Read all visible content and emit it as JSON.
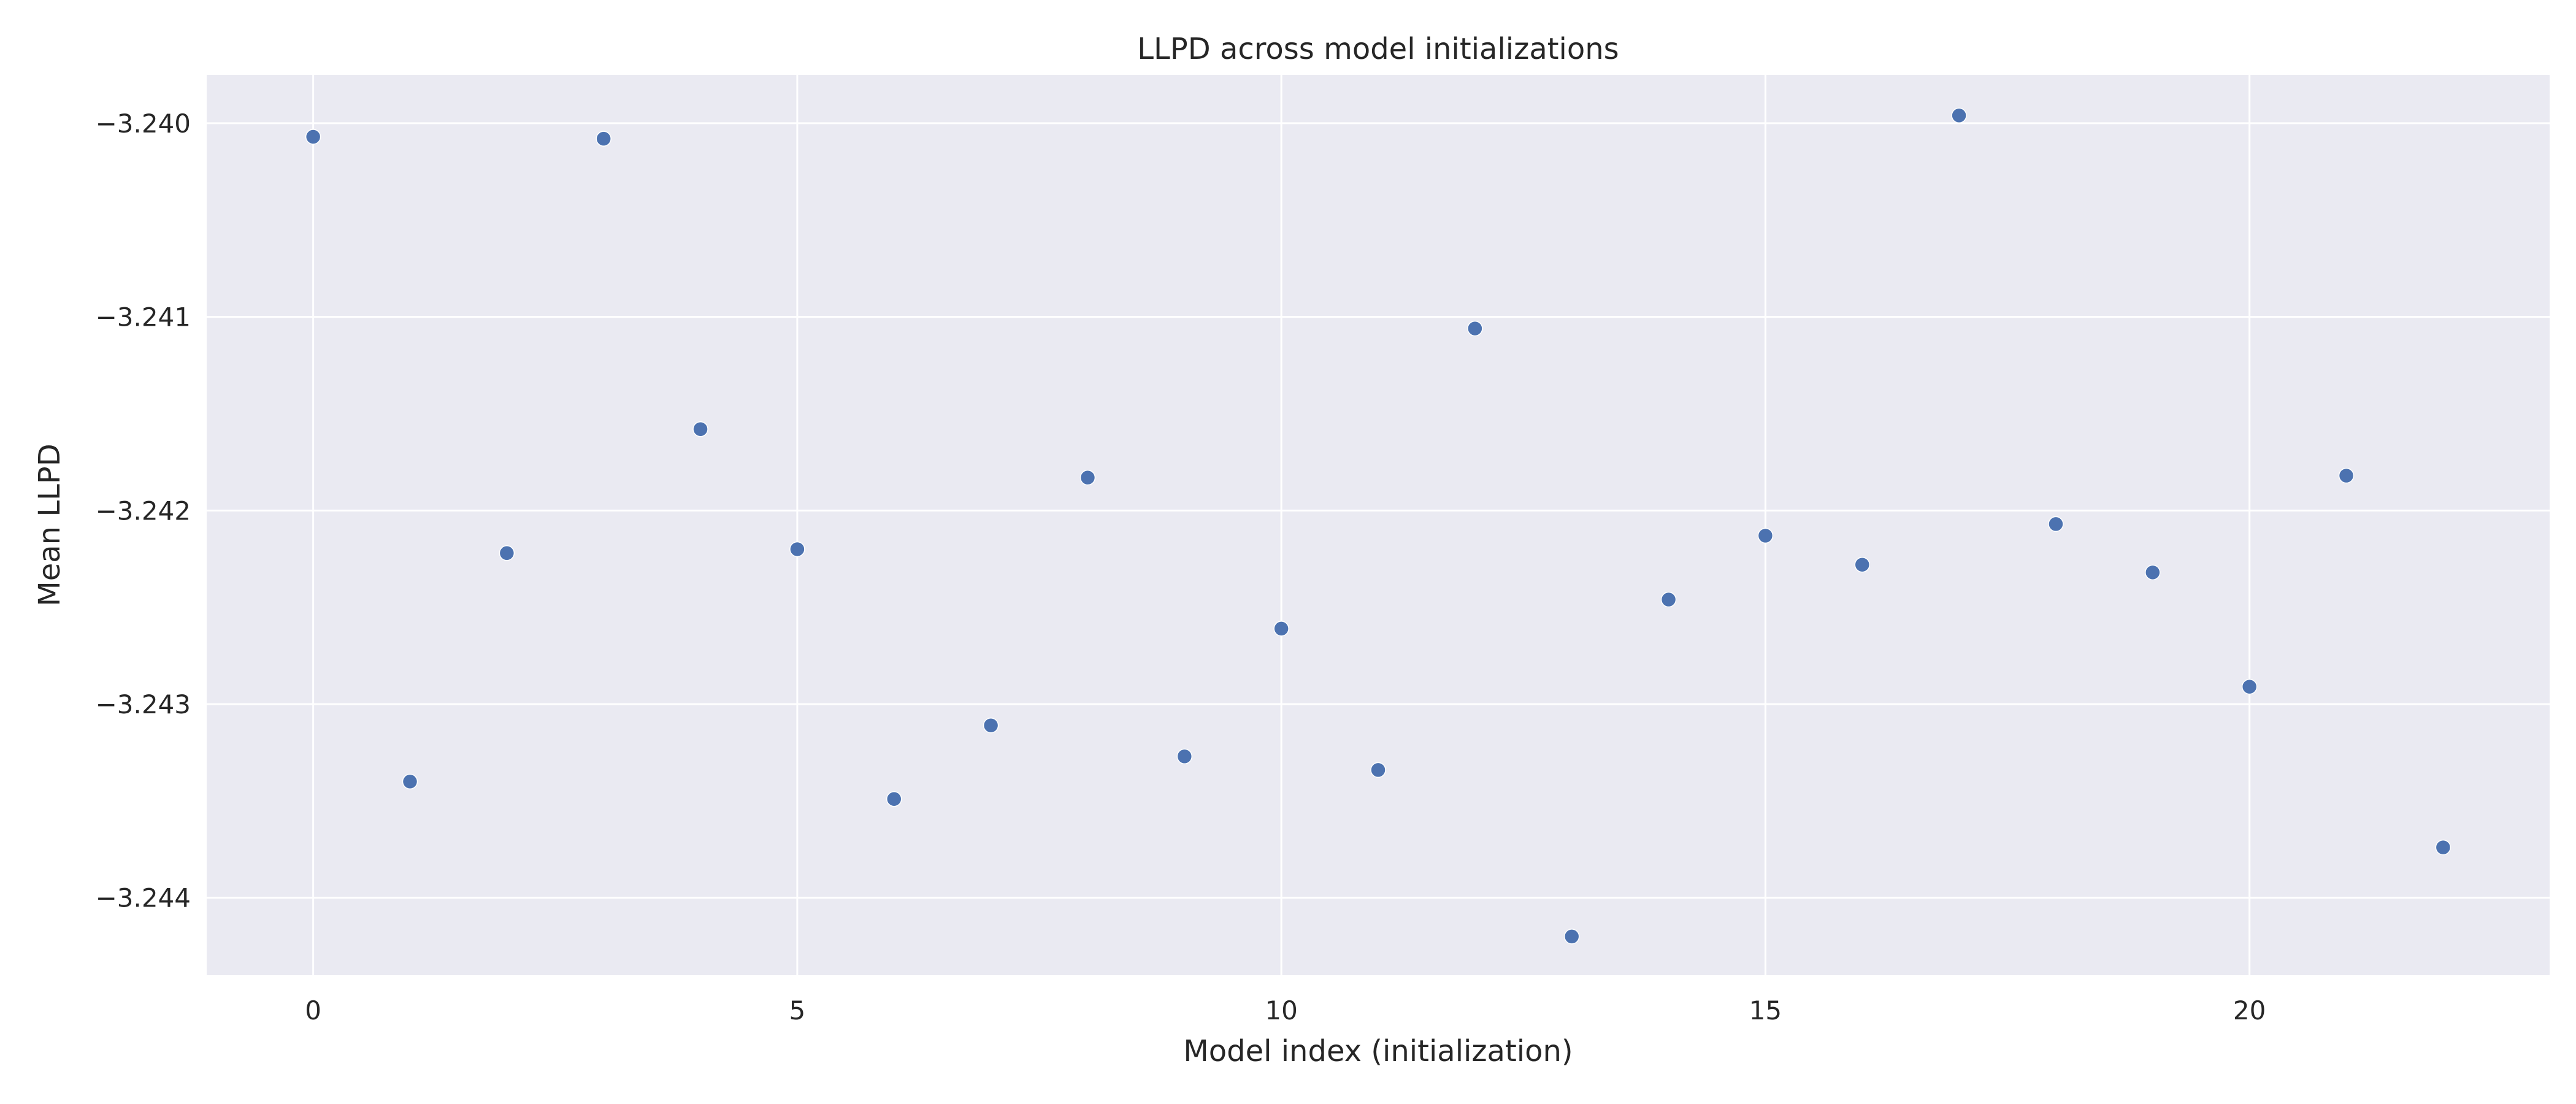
{
  "chart_data": {
    "type": "scatter",
    "title": "LLPD across model initializations",
    "xlabel": "Model index (initialization)",
    "ylabel": "Mean LLPD",
    "xlim": [
      -1.1,
      23.1
    ],
    "ylim": [
      -3.2444,
      -3.23975
    ],
    "xticks": [
      0,
      5,
      10,
      15,
      20
    ],
    "yticks": [
      -3.24,
      -3.241,
      -3.242,
      -3.243,
      -3.244
    ],
    "ytick_labels": [
      "−3.240",
      "−3.241",
      "−3.242",
      "−3.243",
      "−3.244"
    ],
    "grid": true,
    "background": "#eaeaf2",
    "point_color": "#4c72b0",
    "x": [
      0,
      1,
      2,
      3,
      4,
      5,
      6,
      7,
      8,
      9,
      10,
      11,
      12,
      13,
      14,
      15,
      16,
      17,
      18,
      19,
      20,
      21,
      22
    ],
    "y": [
      -3.24007,
      -3.2434,
      -3.24222,
      -3.24008,
      -3.24158,
      -3.2422,
      -3.24349,
      -3.24311,
      -3.24183,
      -3.24327,
      -3.24261,
      -3.24334,
      -3.24106,
      -3.2442,
      -3.24246,
      -3.24213,
      -3.24228,
      -3.23996,
      -3.24207,
      -3.24232,
      -3.24291,
      -3.24182,
      -3.24374
    ]
  }
}
